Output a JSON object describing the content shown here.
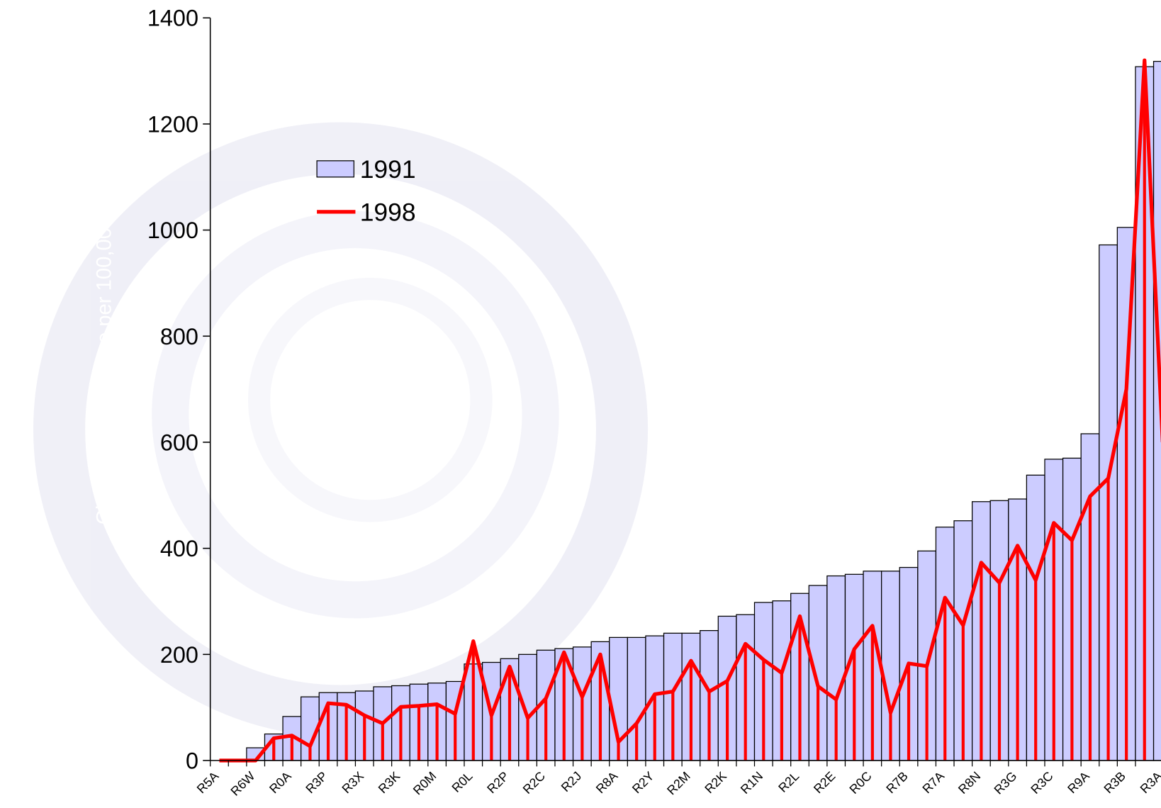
{
  "chart_data": {
    "type": "bar-line",
    "y_label": "Chlamydia Incidence per 100,000",
    "categories": [
      "R5A",
      null,
      "R6W",
      null,
      "R0A",
      null,
      "R3P",
      null,
      "R3X",
      null,
      "R3K",
      null,
      "R0M",
      null,
      "R0L",
      null,
      "R2P",
      null,
      "R2C",
      null,
      "R2J",
      null,
      "R8A",
      null,
      "R2Y",
      null,
      "R2M",
      null,
      "R2K",
      null,
      "R1N",
      null,
      "R2L",
      null,
      "R2E",
      null,
      "R0C",
      null,
      "R7B",
      null,
      "R7A",
      null,
      "R8N",
      null,
      "R3G",
      null,
      "R3C",
      null,
      "R9A",
      null,
      "R3B",
      null,
      "R3A"
    ],
    "series": [
      {
        "name": "1991",
        "color": "#ccccff",
        "values": [
          0,
          0,
          24,
          50,
          83,
          120,
          128,
          128,
          131,
          139,
          141,
          144,
          146,
          149,
          182,
          185,
          192,
          200,
          208,
          211,
          214,
          224,
          232,
          232,
          235,
          240,
          240,
          245,
          272,
          275,
          298,
          301,
          315,
          330,
          348,
          351,
          357,
          357,
          364,
          395,
          440,
          452,
          488,
          490,
          493,
          538,
          568,
          570,
          616,
          972,
          1005,
          1308,
          1318
        ]
      },
      {
        "name": "1998",
        "color": "#ff0000",
        "values": [
          0,
          0,
          0,
          42,
          47,
          27,
          108,
          105,
          85,
          70,
          101,
          103,
          106,
          88,
          225,
          85,
          177,
          80,
          117,
          204,
          120,
          200,
          35,
          70,
          125,
          130,
          188,
          130,
          150,
          220,
          190,
          165,
          272,
          140,
          115,
          210,
          254,
          90,
          183,
          178,
          307,
          255,
          373,
          335,
          405,
          340,
          448,
          415,
          498,
          532,
          700,
          1320,
          600
        ]
      }
    ],
    "ylim": [
      0,
      1400
    ],
    "yticks": [
      0,
      200,
      400,
      600,
      800,
      1000,
      1200,
      1400
    ]
  }
}
